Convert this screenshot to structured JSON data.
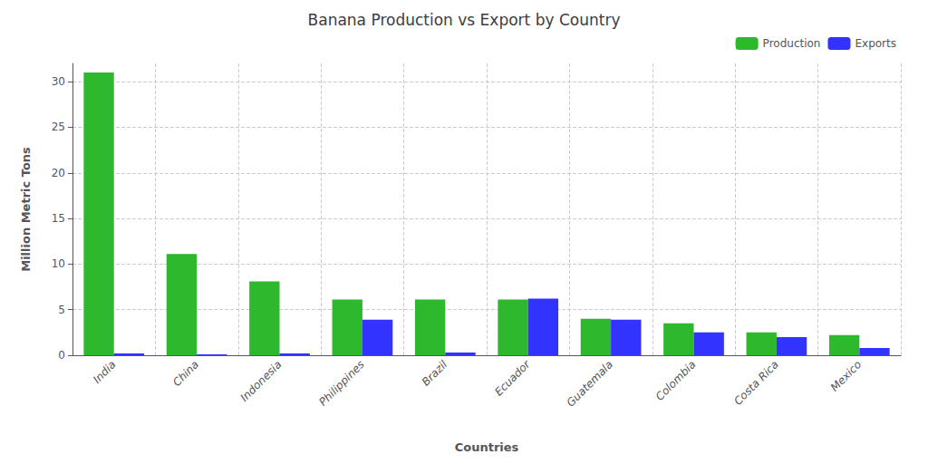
{
  "chart_data": {
    "type": "bar",
    "title": "Banana Production vs Export by Country",
    "xlabel": "Countries",
    "ylabel": "Million Metric Tons",
    "categories": [
      "India",
      "China",
      "Indonesia",
      "Philippines",
      "Brazil",
      "Ecuador",
      "Guatemala",
      "Colombia",
      "Costa Rica",
      "Mexico"
    ],
    "series": [
      {
        "name": "Production",
        "color": "#2db82d",
        "values": [
          31.0,
          11.1,
          8.1,
          6.1,
          6.1,
          6.1,
          4.0,
          3.5,
          2.5,
          2.2
        ]
      },
      {
        "name": "Exports",
        "color": "#3333ff",
        "values": [
          0.2,
          0.1,
          0.2,
          3.9,
          0.3,
          6.2,
          3.9,
          2.5,
          2.0,
          0.8
        ]
      }
    ],
    "ylim": [
      0,
      32
    ],
    "yticks": [
      0,
      5,
      10,
      15,
      20,
      25,
      30
    ],
    "grid": true,
    "legend": "upper right"
  }
}
